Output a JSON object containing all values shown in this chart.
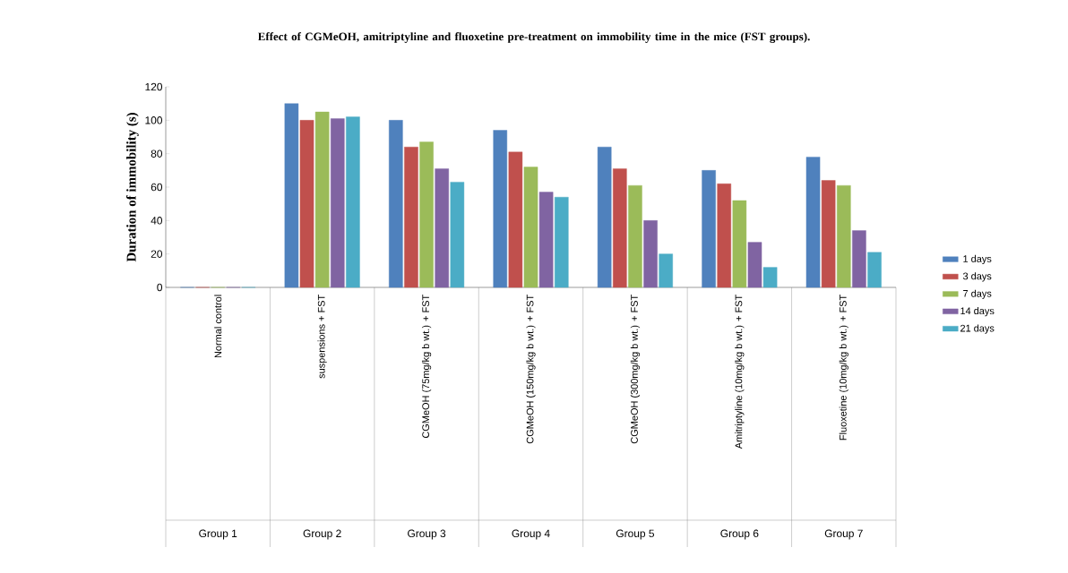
{
  "chart_data": {
    "type": "bar",
    "title": "Effect of CGMeOH, amitriptyline and fluoxetine pre-treatment on immobility time in the mice (FST groups).",
    "ylabel": "Duration of immobility (s)",
    "categories": [
      "Normal control",
      "suspensions + FST",
      "CGMeOH (75mg/kg b wt.) + FST",
      "CGMeOH (150mg/kg b wt.) + FST",
      "CGMeOH (300mg/kg b wt.) + FST",
      "Amitriptyline (10mg/kg b wt.) + FST",
      "Fluoxetine (10mg/kg b wt.) + FST"
    ],
    "annotations": [
      "Group 1",
      "Group 2",
      "Group 3",
      "Group 4",
      "Group 5",
      "Group 6",
      "Group 7"
    ],
    "series": [
      {
        "name": "1 days",
        "color": "#4f81bd",
        "values": [
          0,
          110,
          100,
          94,
          84,
          70,
          78
        ]
      },
      {
        "name": "3 days",
        "color": "#c0504d",
        "values": [
          0,
          100,
          84,
          81,
          71,
          62,
          64
        ]
      },
      {
        "name": "7 days",
        "color": "#9bbb59",
        "values": [
          0,
          105,
          87,
          72,
          61,
          52,
          61
        ]
      },
      {
        "name": "14 days",
        "color": "#8064a2",
        "values": [
          0,
          101,
          71,
          57,
          40,
          27,
          34
        ]
      },
      {
        "name": "21 days",
        "color": "#4bacc6",
        "values": [
          0,
          102,
          63,
          54,
          20,
          12,
          21
        ]
      }
    ],
    "ylim": [
      0,
      120
    ],
    "yticks": [
      0,
      20,
      40,
      60,
      80,
      100,
      120
    ],
    "legend": "right"
  }
}
